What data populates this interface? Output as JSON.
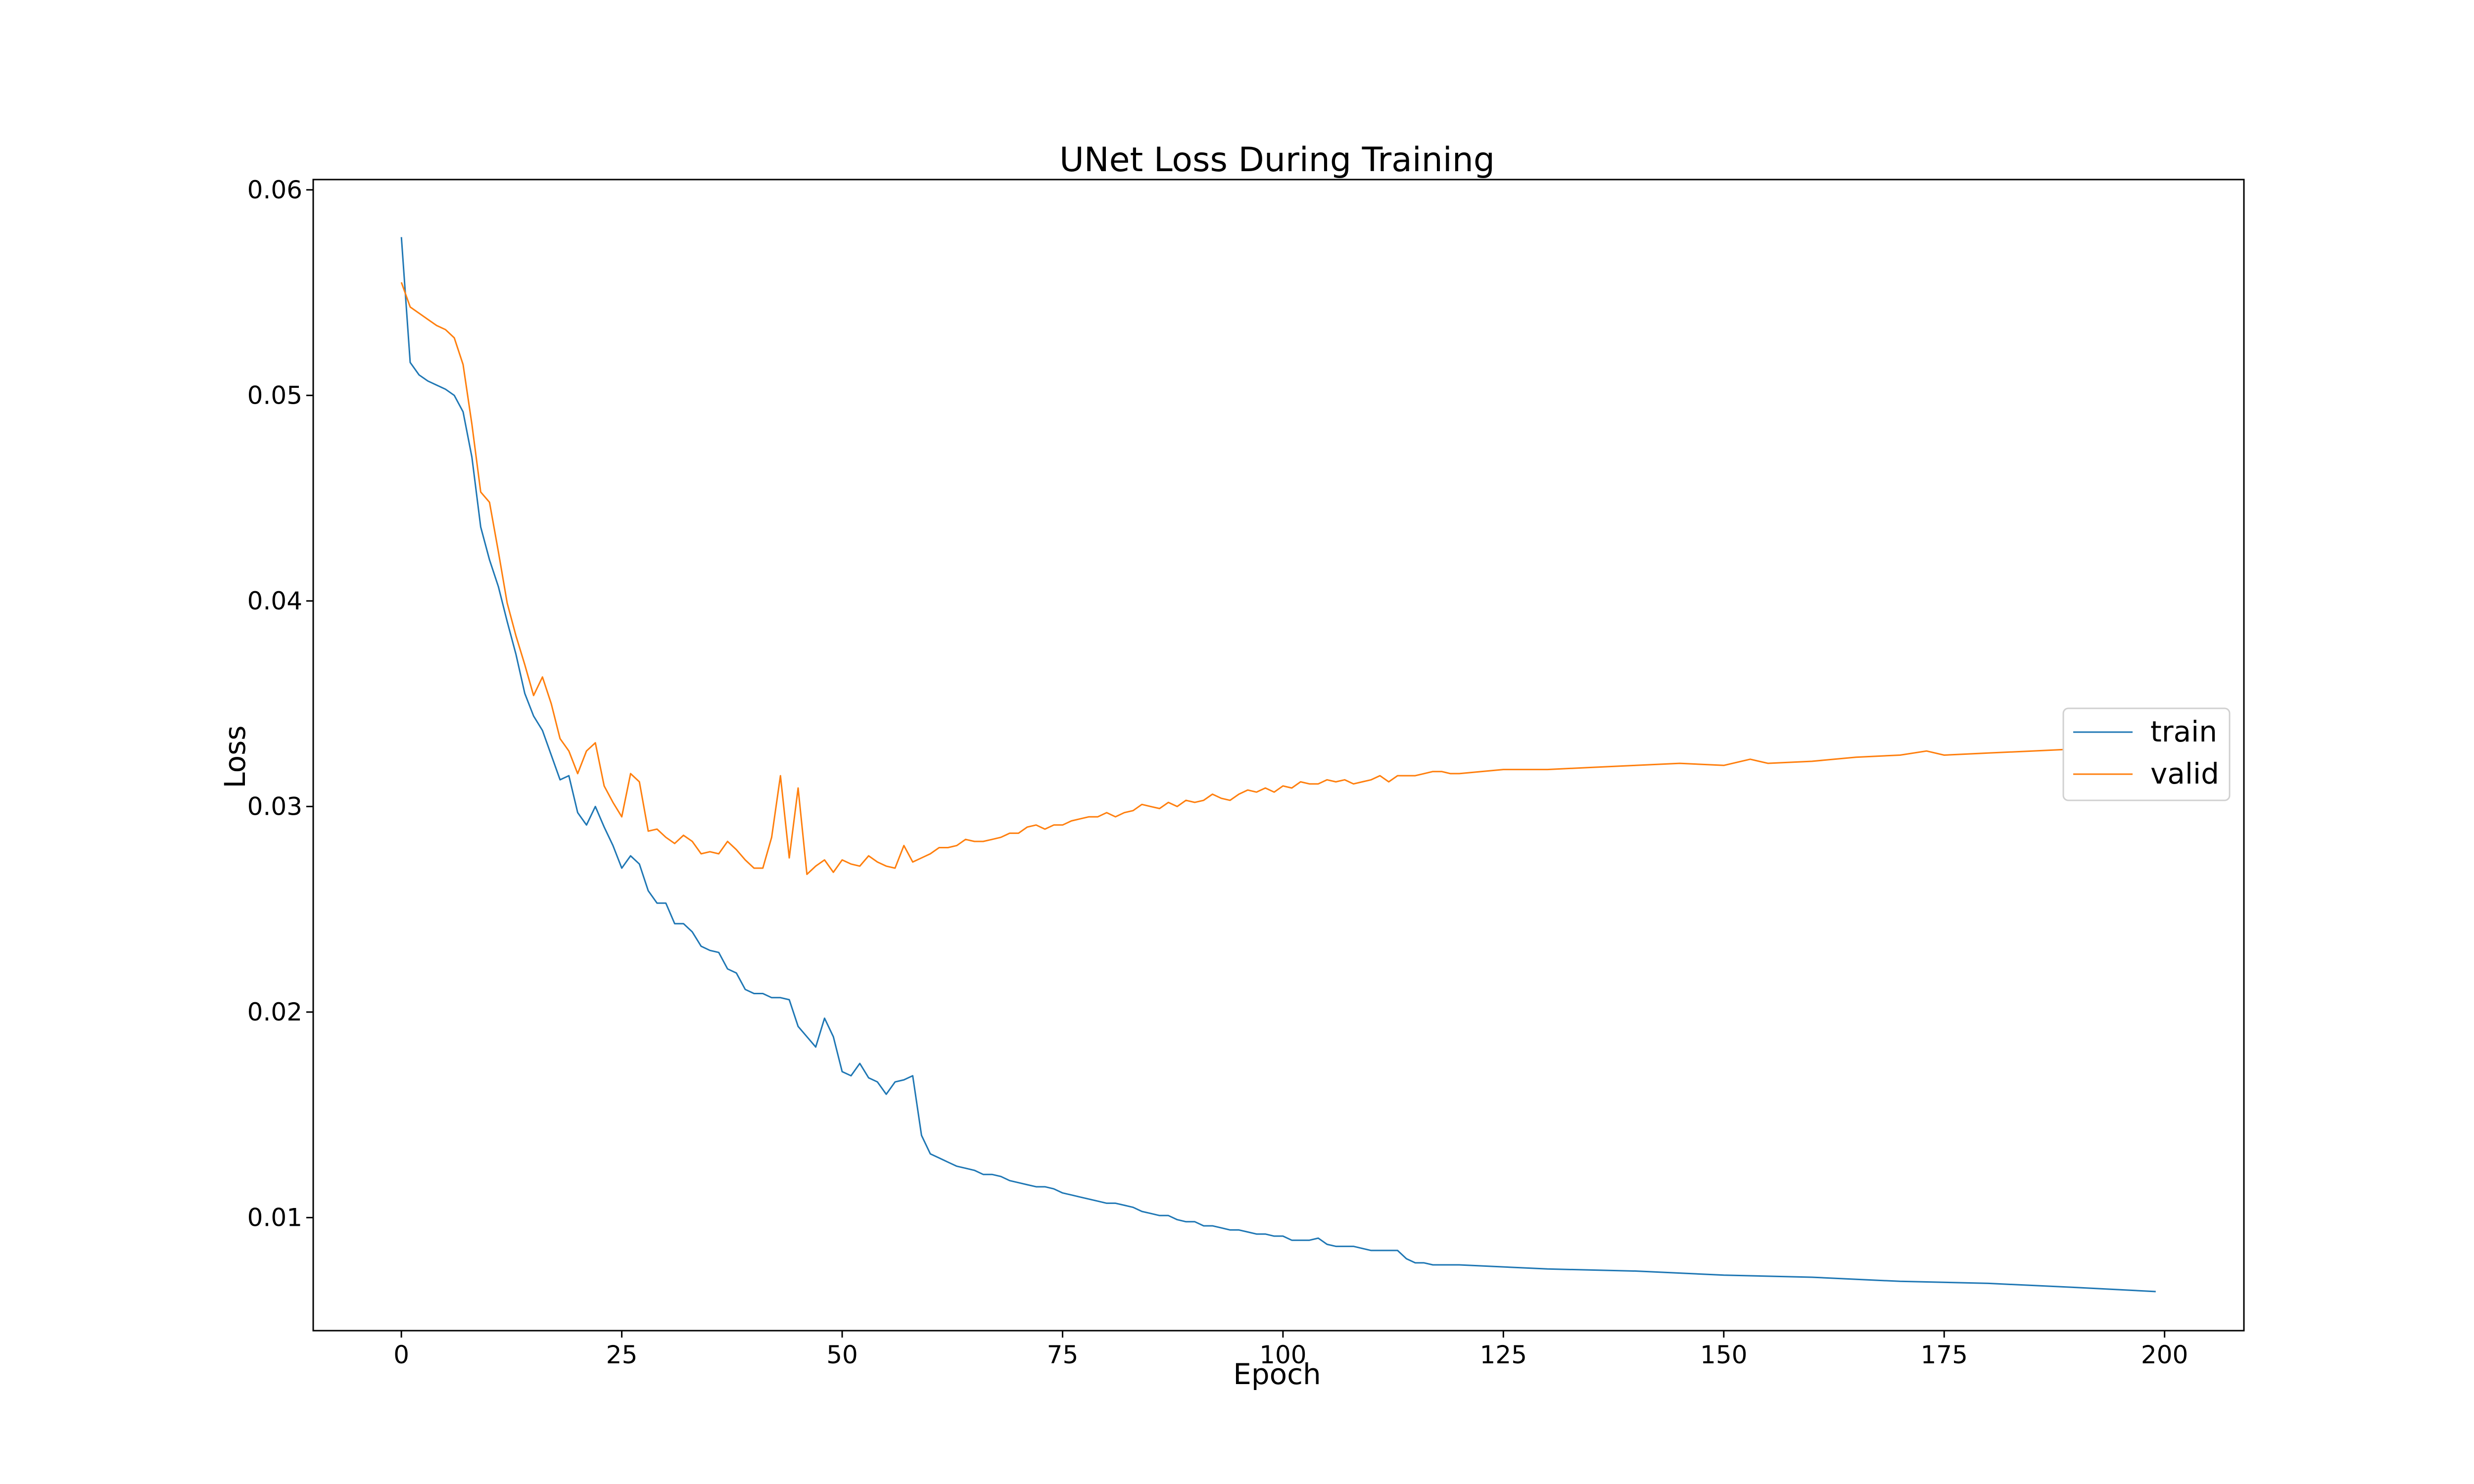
{
  "chart_data": {
    "type": "line",
    "title": "UNet Loss During Training",
    "xlabel": "Epoch",
    "ylabel": "Loss",
    "xlim": [
      -10,
      209
    ],
    "ylim": [
      0.0045,
      0.0605
    ],
    "xticks": [
      0,
      25,
      50,
      75,
      100,
      125,
      150,
      175,
      200
    ],
    "yticks": [
      0.01,
      0.02,
      0.03,
      0.04,
      0.05,
      0.06
    ],
    "xtick_labels": [
      "0",
      "25",
      "50",
      "75",
      "100",
      "125",
      "150",
      "175",
      "200"
    ],
    "ytick_labels": [
      "0.01",
      "0.02",
      "0.03",
      "0.04",
      "0.05",
      "0.06"
    ],
    "grid": false,
    "legend_position": "center-right",
    "series": [
      {
        "name": "train",
        "color": "#1f77b4",
        "points": [
          [
            0,
            0.0577
          ],
          [
            1,
            0.0516
          ],
          [
            2,
            0.051
          ],
          [
            3,
            0.0507
          ],
          [
            4,
            0.0505
          ],
          [
            5,
            0.0503
          ],
          [
            6,
            0.05
          ],
          [
            7,
            0.0492
          ],
          [
            8,
            0.047
          ],
          [
            9,
            0.0436
          ],
          [
            10,
            0.042
          ],
          [
            11,
            0.0407
          ],
          [
            12,
            0.039
          ],
          [
            13,
            0.0374
          ],
          [
            14,
            0.0355
          ],
          [
            15,
            0.0344
          ],
          [
            16,
            0.0337
          ],
          [
            17,
            0.0325
          ],
          [
            18,
            0.0313
          ],
          [
            19,
            0.0315
          ],
          [
            20,
            0.0297
          ],
          [
            21,
            0.0291
          ],
          [
            22,
            0.03
          ],
          [
            23,
            0.029
          ],
          [
            24,
            0.0281
          ],
          [
            25,
            0.027
          ],
          [
            26,
            0.0276
          ],
          [
            27,
            0.0272
          ],
          [
            28,
            0.0259
          ],
          [
            29,
            0.0253
          ],
          [
            30,
            0.0253
          ],
          [
            31,
            0.0243
          ],
          [
            32,
            0.0243
          ],
          [
            33,
            0.0239
          ],
          [
            34,
            0.0232
          ],
          [
            35,
            0.023
          ],
          [
            36,
            0.0229
          ],
          [
            37,
            0.0221
          ],
          [
            38,
            0.0219
          ],
          [
            39,
            0.0211
          ],
          [
            40,
            0.0209
          ],
          [
            41,
            0.0209
          ],
          [
            42,
            0.0207
          ],
          [
            43,
            0.0207
          ],
          [
            44,
            0.0206
          ],
          [
            45,
            0.0193
          ],
          [
            46,
            0.0188
          ],
          [
            47,
            0.0183
          ],
          [
            48,
            0.0197
          ],
          [
            49,
            0.0188
          ],
          [
            50,
            0.0171
          ],
          [
            51,
            0.0169
          ],
          [
            52,
            0.0175
          ],
          [
            53,
            0.0168
          ],
          [
            54,
            0.0166
          ],
          [
            55,
            0.016
          ],
          [
            56,
            0.0166
          ],
          [
            57,
            0.0167
          ],
          [
            58,
            0.0169
          ],
          [
            59,
            0.014
          ],
          [
            60,
            0.0131
          ],
          [
            61,
            0.0129
          ],
          [
            62,
            0.0127
          ],
          [
            63,
            0.0125
          ],
          [
            64,
            0.0124
          ],
          [
            65,
            0.0123
          ],
          [
            66,
            0.0121
          ],
          [
            67,
            0.0121
          ],
          [
            68,
            0.012
          ],
          [
            69,
            0.0118
          ],
          [
            70,
            0.0117
          ],
          [
            71,
            0.0116
          ],
          [
            72,
            0.0115
          ],
          [
            73,
            0.0115
          ],
          [
            74,
            0.0114
          ],
          [
            75,
            0.0112
          ],
          [
            76,
            0.0111
          ],
          [
            77,
            0.011
          ],
          [
            78,
            0.0109
          ],
          [
            79,
            0.0108
          ],
          [
            80,
            0.0107
          ],
          [
            81,
            0.0107
          ],
          [
            82,
            0.0106
          ],
          [
            83,
            0.0105
          ],
          [
            84,
            0.0103
          ],
          [
            85,
            0.0102
          ],
          [
            86,
            0.0101
          ],
          [
            87,
            0.0101
          ],
          [
            88,
            0.0099
          ],
          [
            89,
            0.0098
          ],
          [
            90,
            0.0098
          ],
          [
            91,
            0.0096
          ],
          [
            92,
            0.0096
          ],
          [
            93,
            0.0095
          ],
          [
            94,
            0.0094
          ],
          [
            95,
            0.0094
          ],
          [
            96,
            0.0093
          ],
          [
            97,
            0.0092
          ],
          [
            98,
            0.0092
          ],
          [
            99,
            0.0091
          ],
          [
            100,
            0.0091
          ],
          [
            101,
            0.0089
          ],
          [
            102,
            0.0089
          ],
          [
            103,
            0.0089
          ],
          [
            104,
            0.009
          ],
          [
            105,
            0.0087
          ],
          [
            106,
            0.0086
          ],
          [
            107,
            0.0086
          ],
          [
            108,
            0.0086
          ],
          [
            109,
            0.0085
          ],
          [
            110,
            0.0084
          ],
          [
            111,
            0.0084
          ],
          [
            112,
            0.0084
          ],
          [
            113,
            0.0084
          ],
          [
            114,
            0.008
          ],
          [
            115,
            0.0078
          ],
          [
            116,
            0.0078
          ],
          [
            117,
            0.0077
          ],
          [
            118,
            0.0077
          ],
          [
            119,
            0.0077
          ],
          [
            120,
            0.0077
          ],
          [
            130,
            0.0075
          ],
          [
            140,
            0.0074
          ],
          [
            150,
            0.0072
          ],
          [
            160,
            0.0071
          ],
          [
            170,
            0.0069
          ],
          [
            180,
            0.0068
          ],
          [
            190,
            0.0066
          ],
          [
            199,
            0.0064
          ]
        ]
      },
      {
        "name": "valid",
        "color": "#ff7f0e",
        "points": [
          [
            0,
            0.0555
          ],
          [
            1,
            0.0543
          ],
          [
            2,
            0.054
          ],
          [
            3,
            0.0537
          ],
          [
            4,
            0.0534
          ],
          [
            5,
            0.0532
          ],
          [
            6,
            0.0528
          ],
          [
            7,
            0.0515
          ],
          [
            8,
            0.0486
          ],
          [
            9,
            0.0453
          ],
          [
            10,
            0.0448
          ],
          [
            11,
            0.0424
          ],
          [
            12,
            0.0399
          ],
          [
            13,
            0.0383
          ],
          [
            14,
            0.0369
          ],
          [
            15,
            0.0354
          ],
          [
            16,
            0.0363
          ],
          [
            17,
            0.035
          ],
          [
            18,
            0.0333
          ],
          [
            19,
            0.0327
          ],
          [
            20,
            0.0316
          ],
          [
            21,
            0.0327
          ],
          [
            22,
            0.0331
          ],
          [
            23,
            0.031
          ],
          [
            24,
            0.0302
          ],
          [
            25,
            0.0295
          ],
          [
            26,
            0.0316
          ],
          [
            27,
            0.0312
          ],
          [
            28,
            0.0288
          ],
          [
            29,
            0.0289
          ],
          [
            30,
            0.0285
          ],
          [
            31,
            0.0282
          ],
          [
            32,
            0.0286
          ],
          [
            33,
            0.0283
          ],
          [
            34,
            0.0277
          ],
          [
            35,
            0.0278
          ],
          [
            36,
            0.0277
          ],
          [
            37,
            0.0283
          ],
          [
            38,
            0.0279
          ],
          [
            39,
            0.0274
          ],
          [
            40,
            0.027
          ],
          [
            41,
            0.027
          ],
          [
            42,
            0.0285
          ],
          [
            43,
            0.0315
          ],
          [
            44,
            0.0275
          ],
          [
            45,
            0.0309
          ],
          [
            46,
            0.0267
          ],
          [
            47,
            0.0271
          ],
          [
            48,
            0.0274
          ],
          [
            49,
            0.0268
          ],
          [
            50,
            0.0274
          ],
          [
            51,
            0.0272
          ],
          [
            52,
            0.0271
          ],
          [
            53,
            0.0276
          ],
          [
            54,
            0.0273
          ],
          [
            55,
            0.0271
          ],
          [
            56,
            0.027
          ],
          [
            57,
            0.0281
          ],
          [
            58,
            0.0273
          ],
          [
            59,
            0.0275
          ],
          [
            60,
            0.0277
          ],
          [
            61,
            0.028
          ],
          [
            62,
            0.028
          ],
          [
            63,
            0.0281
          ],
          [
            64,
            0.0284
          ],
          [
            65,
            0.0283
          ],
          [
            66,
            0.0283
          ],
          [
            67,
            0.0284
          ],
          [
            68,
            0.0285
          ],
          [
            69,
            0.0287
          ],
          [
            70,
            0.0287
          ],
          [
            71,
            0.029
          ],
          [
            72,
            0.0291
          ],
          [
            73,
            0.0289
          ],
          [
            74,
            0.0291
          ],
          [
            75,
            0.0291
          ],
          [
            76,
            0.0293
          ],
          [
            77,
            0.0294
          ],
          [
            78,
            0.0295
          ],
          [
            79,
            0.0295
          ],
          [
            80,
            0.0297
          ],
          [
            81,
            0.0295
          ],
          [
            82,
            0.0297
          ],
          [
            83,
            0.0298
          ],
          [
            84,
            0.0301
          ],
          [
            85,
            0.03
          ],
          [
            86,
            0.0299
          ],
          [
            87,
            0.0302
          ],
          [
            88,
            0.03
          ],
          [
            89,
            0.0303
          ],
          [
            90,
            0.0302
          ],
          [
            91,
            0.0303
          ],
          [
            92,
            0.0306
          ],
          [
            93,
            0.0304
          ],
          [
            94,
            0.0303
          ],
          [
            95,
            0.0306
          ],
          [
            96,
            0.0308
          ],
          [
            97,
            0.0307
          ],
          [
            98,
            0.0309
          ],
          [
            99,
            0.0307
          ],
          [
            100,
            0.031
          ],
          [
            101,
            0.0309
          ],
          [
            102,
            0.0312
          ],
          [
            103,
            0.0311
          ],
          [
            104,
            0.0311
          ],
          [
            105,
            0.0313
          ],
          [
            106,
            0.0312
          ],
          [
            107,
            0.0313
          ],
          [
            108,
            0.0311
          ],
          [
            109,
            0.0312
          ],
          [
            110,
            0.0313
          ],
          [
            111,
            0.0315
          ],
          [
            112,
            0.0312
          ],
          [
            113,
            0.0315
          ],
          [
            114,
            0.0315
          ],
          [
            115,
            0.0315
          ],
          [
            116,
            0.0316
          ],
          [
            117,
            0.0317
          ],
          [
            118,
            0.0317
          ],
          [
            119,
            0.0316
          ],
          [
            120,
            0.0316
          ],
          [
            125,
            0.0318
          ],
          [
            130,
            0.0318
          ],
          [
            135,
            0.0319
          ],
          [
            140,
            0.032
          ],
          [
            145,
            0.0321
          ],
          [
            150,
            0.032
          ],
          [
            153,
            0.0323
          ],
          [
            155,
            0.0321
          ],
          [
            160,
            0.0322
          ],
          [
            165,
            0.0324
          ],
          [
            170,
            0.0325
          ],
          [
            173,
            0.0327
          ],
          [
            175,
            0.0325
          ],
          [
            180,
            0.0326
          ],
          [
            185,
            0.0327
          ],
          [
            190,
            0.0328
          ],
          [
            195,
            0.033
          ],
          [
            199,
            0.033
          ]
        ]
      }
    ]
  }
}
